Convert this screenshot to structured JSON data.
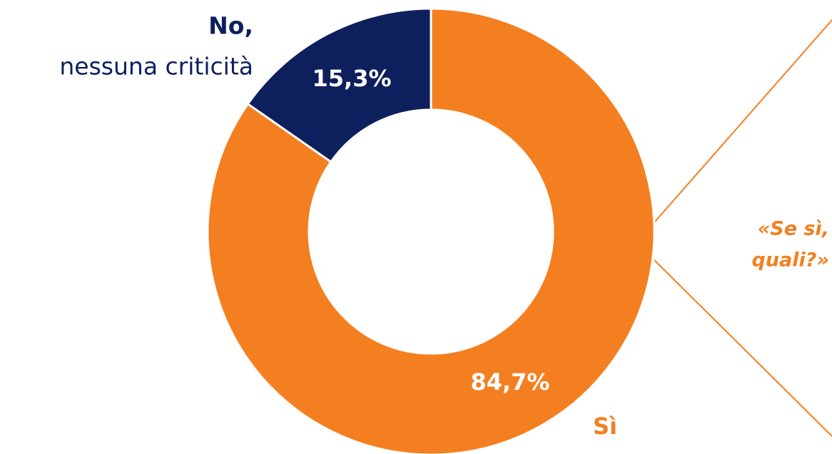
{
  "chart_data": {
    "type": "donut",
    "categories": [
      "Sì",
      "No,"
    ],
    "values": [
      84.7,
      15.3
    ],
    "value_labels": [
      "84,7%",
      "15,3%"
    ],
    "colors": [
      "#f47f20",
      "#0d1f5c"
    ],
    "annotations": [
      "nessuna criticità",
      "«Se sì,",
      "quali?»"
    ]
  }
}
